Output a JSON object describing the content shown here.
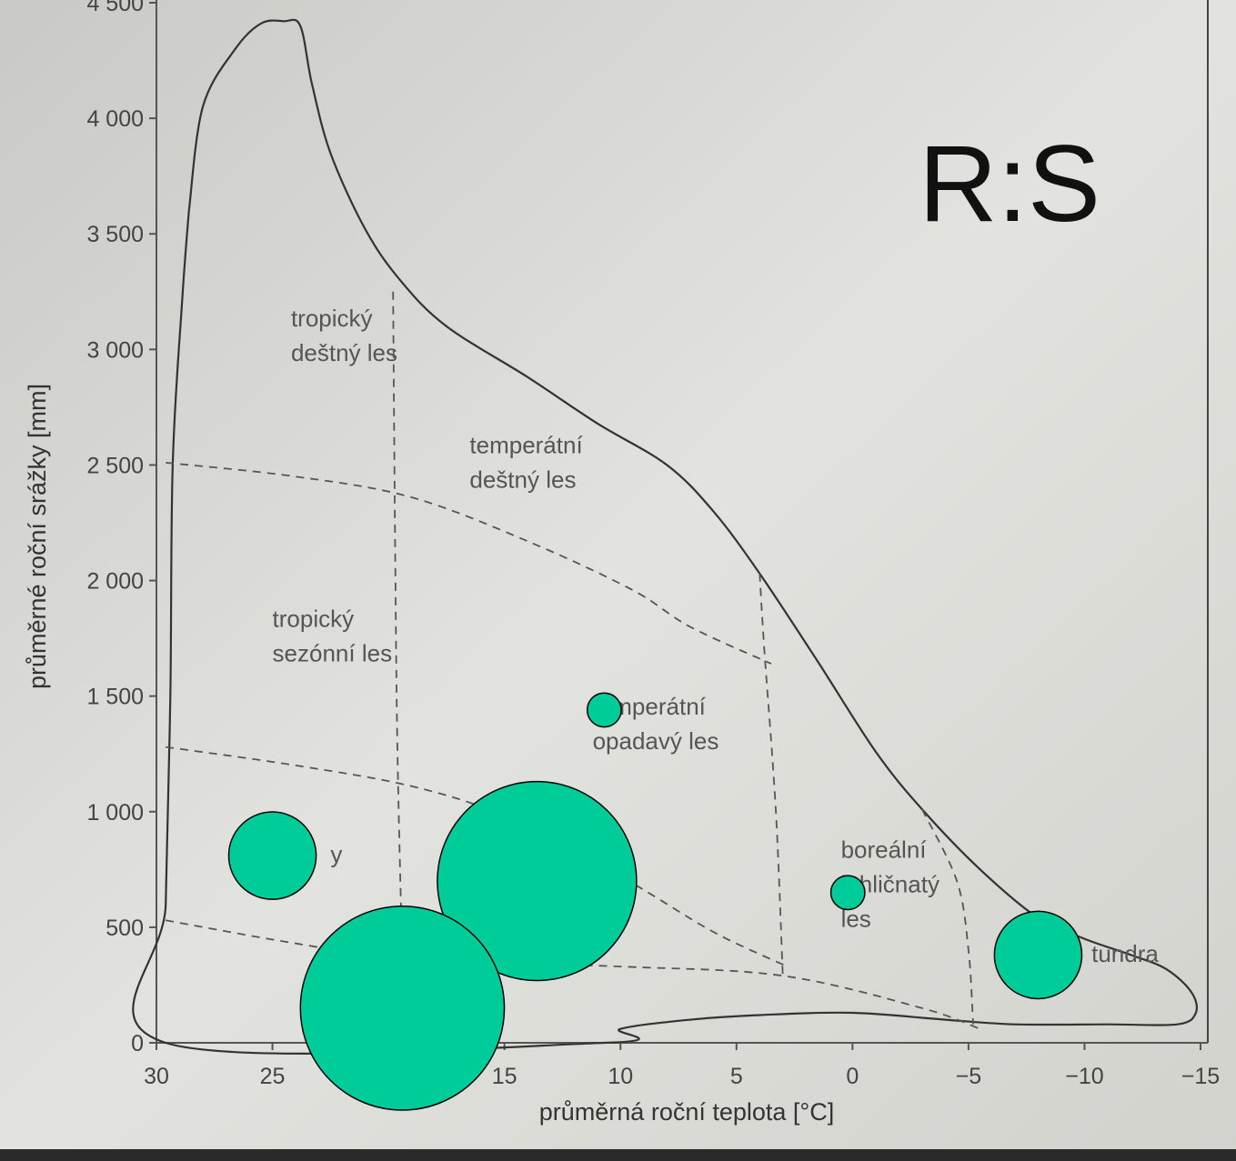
{
  "chart_data": {
    "type": "scatter",
    "title": "R:S",
    "xlabel": "průměrná roční teplota [°C]",
    "ylabel": "průměrné roční srážky [mm]",
    "xlim": [
      30,
      -15
    ],
    "ylim": [
      0,
      4500
    ],
    "x_ticks": [
      30,
      25,
      20,
      15,
      10,
      5,
      0,
      -5,
      -10,
      -15
    ],
    "x_tick_labels": [
      "30",
      "25",
      "20",
      "15",
      "10",
      "5",
      "0",
      "−5",
      "−10",
      "−15"
    ],
    "y_ticks": [
      0,
      500,
      1000,
      1500,
      2000,
      2500,
      3000,
      3500,
      4000,
      4500
    ],
    "y_tick_labels": [
      "0",
      "500",
      "1 000",
      "1 500",
      "2 000",
      "2 500",
      "3 000",
      "3 500",
      "4 000",
      "4 500"
    ],
    "biome_labels": [
      {
        "lines": [
          "tropický",
          "deštný les"
        ],
        "x": 24.2,
        "y": 3100
      },
      {
        "lines": [
          "temperátní",
          "deštný les"
        ],
        "x": 16.5,
        "y": 2550
      },
      {
        "lines": [
          "tropický",
          "sezónní les"
        ],
        "x": 25.0,
        "y": 1800
      },
      {
        "lines": [
          "temperátní",
          "opadavý les"
        ],
        "x": 11.2,
        "y": 1420
      },
      {
        "lines": [
          "boreální",
          "jehličnatý",
          "les"
        ],
        "x": 0.5,
        "y": 800
      },
      {
        "lines": [
          "y"
        ],
        "x": 22.5,
        "y": 780
      },
      {
        "lines": [
          "tundra"
        ],
        "x": -10.3,
        "y": 350
      }
    ],
    "boundary": [
      [
        28.6,
        3600
      ],
      [
        28.0,
        4050
      ],
      [
        26.6,
        4300
      ],
      [
        25.5,
        4410
      ],
      [
        24.5,
        4420
      ],
      [
        23.8,
        4400
      ],
      [
        23.3,
        4150
      ],
      [
        22.5,
        3850
      ],
      [
        21.0,
        3520
      ],
      [
        19.5,
        3300
      ],
      [
        17.5,
        3100
      ],
      [
        14.0,
        2880
      ],
      [
        11.0,
        2680
      ],
      [
        8.0,
        2500
      ],
      [
        6.0,
        2300
      ],
      [
        4.0,
        2030
      ],
      [
        1.5,
        1650
      ],
      [
        -1.0,
        1260
      ],
      [
        -3.0,
        1010
      ],
      [
        -5.5,
        750
      ],
      [
        -8.0,
        540
      ],
      [
        -10.0,
        450
      ],
      [
        -12.0,
        380
      ],
      [
        -13.5,
        320
      ],
      [
        -14.6,
        220
      ],
      [
        -14.8,
        130
      ],
      [
        -14.0,
        80
      ],
      [
        -11.0,
        80
      ],
      [
        -7.0,
        80
      ],
      [
        -4.0,
        100
      ],
      [
        0.0,
        130
      ],
      [
        4.0,
        120
      ],
      [
        7.0,
        100
      ],
      [
        10.0,
        60
      ],
      [
        10.7,
        0
      ],
      [
        29.6,
        0
      ],
      [
        29.6,
        600
      ],
      [
        29.4,
        1500
      ],
      [
        29.3,
        2500
      ],
      [
        28.9,
        3200
      ],
      [
        28.6,
        3600
      ]
    ],
    "dashed_lines": [
      [
        [
          29.6,
          2510
        ],
        [
          24.0,
          2450
        ],
        [
          19.0,
          2360
        ],
        [
          14.0,
          2170
        ],
        [
          9.5,
          1960
        ],
        [
          7.0,
          1800
        ],
        [
          3.5,
          1640
        ]
      ],
      [
        [
          29.6,
          1280
        ],
        [
          24.0,
          1200
        ],
        [
          19.0,
          1110
        ],
        [
          15.0,
          980
        ],
        [
          10.0,
          720
        ],
        [
          6.0,
          480
        ],
        [
          2.8,
          330
        ]
      ],
      [
        [
          29.6,
          530
        ],
        [
          24.0,
          430
        ],
        [
          19.0,
          360
        ],
        [
          10.0,
          330
        ],
        [
          3.0,
          290
        ],
        [
          -3.0,
          150
        ],
        [
          -5.5,
          60
        ]
      ],
      [
        [
          19.8,
          3250
        ],
        [
          19.7,
          2000
        ],
        [
          19.6,
          1200
        ],
        [
          19.4,
          350
        ]
      ],
      [
        [
          4.0,
          2030
        ],
        [
          3.8,
          1700
        ],
        [
          3.3,
          1000
        ],
        [
          3.0,
          280
        ]
      ],
      [
        [
          -3.0,
          1010
        ],
        [
          -4.5,
          700
        ],
        [
          -5.0,
          400
        ],
        [
          -5.2,
          80
        ]
      ]
    ],
    "series": [
      {
        "color": "#00cc99",
        "points": [
          {
            "x": 10.7,
            "y": 1440,
            "r_rel": 0.07
          },
          {
            "x": 25.0,
            "y": 810,
            "r_rel": 0.18
          },
          {
            "x": 13.6,
            "y": 700,
            "r_rel": 0.41
          },
          {
            "x": 0.2,
            "y": 650,
            "r_rel": 0.07
          },
          {
            "x": -8.0,
            "y": 380,
            "r_rel": 0.18
          },
          {
            "x": 19.4,
            "y": 150,
            "r_rel": 0.42
          }
        ]
      }
    ],
    "grid": false,
    "legend": "none"
  }
}
